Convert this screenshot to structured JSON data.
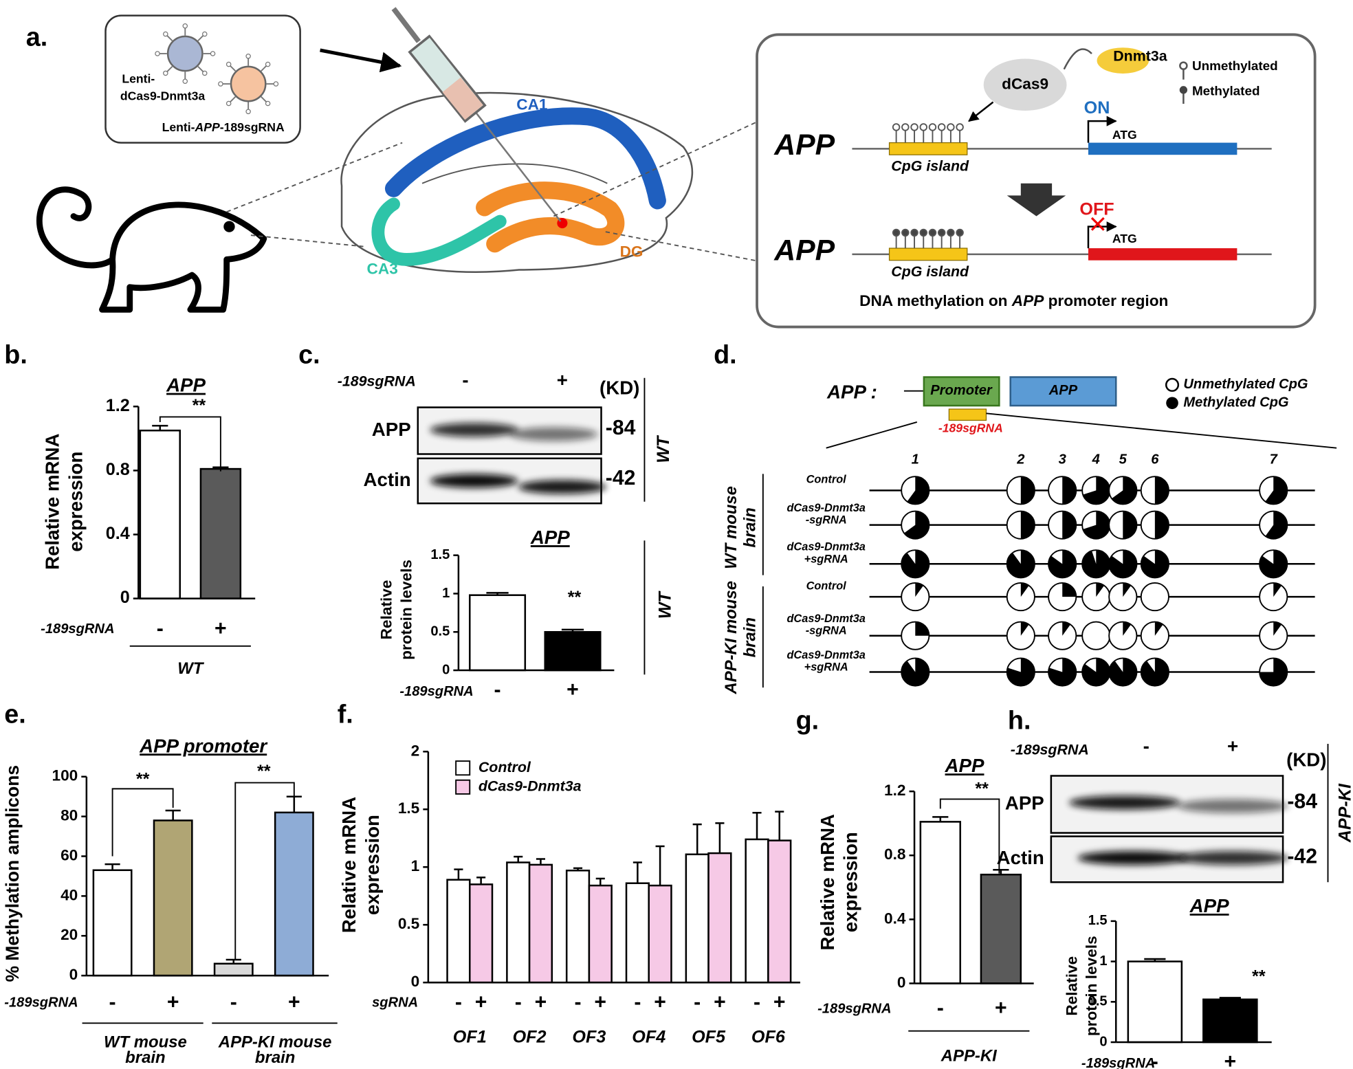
{
  "panel_labels": [
    "a.",
    "b.",
    "c.",
    "d.",
    "e.",
    "f.",
    "g.",
    "h."
  ],
  "panel_a": {
    "virus_1": [
      "Lenti-",
      "dCas9-Dnmt3a"
    ],
    "virus_2": [
      "Lenti-",
      "APP",
      "-189sgRNA"
    ],
    "regions": [
      "CA1",
      "CA3",
      "DG"
    ],
    "enzyme": "dCas9",
    "effector": "Dnmt3a",
    "legend": [
      "Unmethylated",
      "Methylated"
    ],
    "gene": "APP",
    "cpg": "CpG island",
    "states": [
      "ON",
      "OFF"
    ],
    "start_codon": "ATG",
    "caption": [
      "DNA methylation on ",
      "APP",
      " promoter region"
    ]
  },
  "blots": [
    {
      "condition_label": "-189sgRNA",
      "lanes": [
        "-",
        "+"
      ],
      "unit": "(KD)",
      "rows": [
        {
          "protein": "APP",
          "kd": "-84"
        },
        {
          "protein": "Actin",
          "kd": "-42"
        }
      ],
      "side_label": "WT"
    },
    {
      "condition_label": "-189sgRNA",
      "lanes": [
        "-",
        "+"
      ],
      "unit": "(KD)",
      "rows": [
        {
          "protein": "APP",
          "kd": "-84"
        },
        {
          "protein": "Actin",
          "kd": "-42"
        }
      ],
      "side_label": "APP-KI"
    }
  ],
  "methylation": {
    "gene_label": "APP :",
    "promoter": "Promoter",
    "gene": "APP",
    "sgrna": "-189sgRNA",
    "legend": [
      "Unmethylated CpG",
      "Methylated CpG"
    ],
    "cpg_sites": [
      "1",
      "2",
      "3",
      "4",
      "5",
      "6",
      "7"
    ],
    "groups": [
      [
        "WT mouse",
        "brain"
      ],
      [
        "APP-KI mouse",
        "brain"
      ]
    ],
    "rows": [
      {
        "label": [
          "Control"
        ],
        "fractions": [
          0.6,
          0.5,
          0.5,
          0.7,
          0.65,
          0.5,
          0.6
        ]
      },
      {
        "label": [
          "dCas9-Dnmt3a",
          "-sgRNA"
        ],
        "fractions": [
          0.65,
          0.5,
          0.5,
          0.7,
          0.5,
          0.5,
          0.6
        ]
      },
      {
        "label": [
          "dCas9-Dnmt3a",
          "+sgRNA"
        ],
        "fractions": [
          0.9,
          0.9,
          0.85,
          0.95,
          0.85,
          0.85,
          0.85
        ]
      },
      {
        "label": [
          "Control"
        ],
        "fractions": [
          0.1,
          0.1,
          0.25,
          0.1,
          0.1,
          0,
          0.1
        ]
      },
      {
        "label": [
          "dCas9-Dnmt3a",
          "-sgRNA"
        ],
        "fractions": [
          0.25,
          0.1,
          0.1,
          0,
          0.1,
          0.1,
          0.1
        ]
      },
      {
        "label": [
          "dCas9-Dnmt3a",
          "+sgRNA"
        ],
        "fractions": [
          0.9,
          0.8,
          0.8,
          0.85,
          0.9,
          0.9,
          0.75
        ]
      }
    ]
  },
  "chart_data": [
    {
      "type": "bar",
      "title": "APP",
      "y_label": [
        "Relative mRNA",
        "expression"
      ],
      "categories": [
        "-",
        "+"
      ],
      "values": [
        1.05,
        0.81
      ],
      "errors": [
        0.03,
        0.01
      ],
      "colors": [
        "#ffffff",
        "#5a5a5a"
      ],
      "ylim": [
        0,
        1.2
      ],
      "yticks": [
        0,
        0.4,
        0.8,
        1.2
      ],
      "x_label": "-189sgRNA",
      "annotations": [
        "**"
      ],
      "group_labels": [
        [
          "WT"
        ]
      ]
    },
    {
      "type": "bar",
      "title": "APP",
      "y_label": [
        "Relative",
        "protein levels"
      ],
      "categories": [
        "-",
        "+"
      ],
      "values": [
        0.98,
        0.5
      ],
      "errors": [
        0.03,
        0.03
      ],
      "colors": [
        "#ffffff",
        "#000000"
      ],
      "ylim": [
        0,
        1.5
      ],
      "yticks": [
        0,
        0.5,
        1,
        1.5
      ],
      "x_label": "-189sgRNA",
      "annotations": [
        "**"
      ],
      "side_label": "WT"
    },
    {
      "type": "bar",
      "title": "APP promoter",
      "y_label": [
        "% Methylation amplicons"
      ],
      "categories": [
        "-",
        "+",
        "-",
        "+"
      ],
      "values": [
        53,
        78,
        6,
        82
      ],
      "errors": [
        3,
        5,
        2,
        8
      ],
      "colors": [
        "#ffffff",
        "#b0a574",
        "#d9d9d9",
        "#8eacd6"
      ],
      "ylim": [
        0,
        100
      ],
      "yticks": [
        0,
        20,
        40,
        60,
        80,
        100
      ],
      "x_label": "-189sgRNA",
      "annotations": [
        "**",
        "**"
      ],
      "group_labels": [
        [
          "WT mouse",
          "brain"
        ],
        [
          "APP-KI mouse",
          "brain"
        ]
      ]
    },
    {
      "type": "bar",
      "y_label": [
        "Relative mRNA",
        "expression"
      ],
      "categories": [
        "OF1",
        "OF2",
        "OF3",
        "OF4",
        "OF5",
        "OF6"
      ],
      "sub_categories": [
        "-",
        "+"
      ],
      "series": [
        {
          "name": "Control",
          "color": "#ffffff",
          "values": [
            0.89,
            1.04,
            0.97,
            0.86,
            1.11,
            1.24
          ],
          "errors": [
            0.09,
            0.05,
            0.02,
            0.18,
            0.26,
            0.23
          ]
        },
        {
          "name": "dCas9-Dnmt3a",
          "color": "#f6c9e6",
          "values": [
            0.85,
            1.02,
            0.84,
            0.84,
            1.12,
            1.23
          ],
          "errors": [
            0.06,
            0.05,
            0.06,
            0.34,
            0.26,
            0.25
          ]
        }
      ],
      "ylim": [
        0,
        2
      ],
      "yticks": [
        0,
        0.5,
        1,
        1.5,
        2
      ],
      "x_label": "sgRNA"
    },
    {
      "type": "bar",
      "title": "APP",
      "y_label": [
        "Relative mRNA",
        "expression"
      ],
      "categories": [
        "-",
        "+"
      ],
      "values": [
        1.01,
        0.68
      ],
      "errors": [
        0.03,
        0.03
      ],
      "colors": [
        "#ffffff",
        "#5a5a5a"
      ],
      "ylim": [
        0,
        1.2
      ],
      "yticks": [
        0,
        0.4,
        0.8,
        1.2
      ],
      "x_label": "-189sgRNA",
      "annotations": [
        "**"
      ],
      "group_labels": [
        [
          "APP-KI"
        ]
      ]
    },
    {
      "type": "bar",
      "title": "APP",
      "y_label": [
        "Relative",
        "protein levels"
      ],
      "categories": [
        "-",
        "+"
      ],
      "values": [
        1.0,
        0.53
      ],
      "errors": [
        0.03,
        0.02
      ],
      "colors": [
        "#ffffff",
        "#000000"
      ],
      "ylim": [
        0,
        1.5
      ],
      "yticks": [
        0,
        0.5,
        1,
        1.5
      ],
      "x_label": "-189sgRNA",
      "annotations": [
        "**"
      ]
    }
  ]
}
